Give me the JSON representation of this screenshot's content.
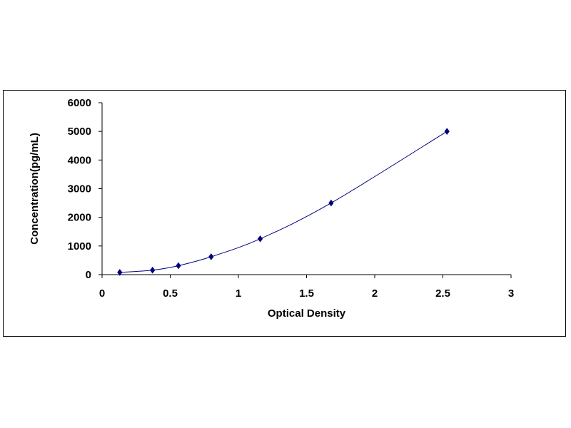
{
  "chart_data": {
    "type": "scatter",
    "title": "",
    "xlabel": "Optical Density",
    "ylabel": "Concentration(pg/mL)",
    "xlim": [
      0,
      3
    ],
    "ylim": [
      0,
      6000
    ],
    "xticks": [
      "0",
      "0.5",
      "1",
      "1.5",
      "2",
      "2.5",
      "3"
    ],
    "yticks": [
      "0",
      "1000",
      "2000",
      "3000",
      "4000",
      "5000",
      "6000"
    ],
    "grid": false,
    "legend": "none",
    "series": [
      {
        "x": [
          0.13,
          0.37,
          0.56,
          0.8,
          1.16,
          1.68,
          2.53
        ],
        "y": [
          78,
          156,
          312,
          625,
          1250,
          2500,
          5000
        ],
        "marker": "diamond",
        "color": "#000080",
        "fit_line": true
      }
    ]
  }
}
